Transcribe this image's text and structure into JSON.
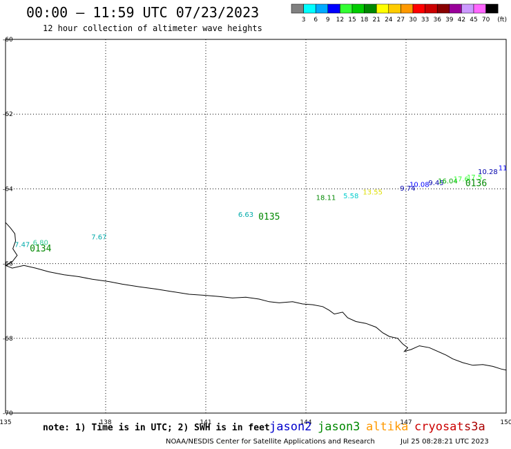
{
  "header": {
    "title": "00:00 – 11:59 UTC 07/23/2023",
    "subtitle": "12 hour collection of altimeter wave heights"
  },
  "legend": {
    "colors": [
      "#808080",
      "#00ffff",
      "#00aaff",
      "#0000ff",
      "#33ff33",
      "#00cc00",
      "#008800",
      "#ffff00",
      "#ffcc00",
      "#ff9900",
      "#ff0000",
      "#cc0000",
      "#880000",
      "#990099",
      "#cc99ff",
      "#ff66ff",
      "#000000"
    ],
    "labels": [
      "3",
      "6",
      "9",
      "12",
      "15",
      "18",
      "21",
      "24",
      "27",
      "30",
      "33",
      "36",
      "39",
      "42",
      "45",
      "70"
    ],
    "unit": "(ft)"
  },
  "axes": {
    "x_ticks": [
      135,
      138,
      141,
      144,
      147,
      150
    ],
    "y_ticks": [
      -60,
      -62,
      -64,
      -66,
      -68,
      -70
    ],
    "x_tick_labels": [
      "135",
      "138",
      "141",
      "144",
      "147",
      "150"
    ],
    "y_tick_labels": [
      "-60",
      "-62",
      "-64",
      "-66",
      "-68",
      "-70"
    ]
  },
  "observations": [
    {
      "text": "7.47",
      "lon": 135.5,
      "lat": -65.55,
      "color": "#00aaaa"
    },
    {
      "text": "6.80",
      "lon": 136.05,
      "lat": -65.5,
      "color": "#33cc99"
    },
    {
      "text": "7.67",
      "lon": 137.8,
      "lat": -65.35,
      "color": "#00aaaa"
    },
    {
      "text": "6.63",
      "lon": 142.2,
      "lat": -64.75,
      "color": "#00aaaa"
    },
    {
      "text": "18.11",
      "lon": 144.6,
      "lat": -64.3,
      "color": "#008800"
    },
    {
      "text": "5.58",
      "lon": 145.35,
      "lat": -64.25,
      "color": "#00cccc"
    },
    {
      "text": "13.55",
      "lon": 146.0,
      "lat": -64.15,
      "color": "#dddd00"
    },
    {
      "text": "9.74",
      "lon": 147.05,
      "lat": -64.05,
      "color": "#0000aa"
    },
    {
      "text": "10.08",
      "lon": 147.4,
      "lat": -63.95,
      "color": "#0000ff"
    },
    {
      "text": "9.45",
      "lon": 147.9,
      "lat": -63.9,
      "color": "#0000aa"
    },
    {
      "text": "16.04",
      "lon": 148.25,
      "lat": -63.85,
      "color": "#00aa00"
    },
    {
      "text": "17.6",
      "lon": 148.65,
      "lat": -63.8,
      "color": "#33ff33"
    },
    {
      "text": "17.5",
      "lon": 149.05,
      "lat": -63.75,
      "color": "#33ff33"
    },
    {
      "text": "10.28",
      "lon": 149.45,
      "lat": -63.6,
      "color": "#0000aa"
    },
    {
      "text": "11",
      "lon": 149.9,
      "lat": -63.5,
      "color": "#0000ff"
    }
  ],
  "time_labels": [
    {
      "text": "0134",
      "lon": 136.05,
      "lat": -65.6,
      "color": "#008800"
    },
    {
      "text": "0135",
      "lon": 142.9,
      "lat": -64.75,
      "color": "#008800"
    },
    {
      "text": "0136",
      "lon": 149.1,
      "lat": -63.85,
      "color": "#008800"
    }
  ],
  "footer": {
    "note": "note: 1) Time is in UTC; 2) SWH is in feet",
    "satellites": [
      {
        "name": "jason2",
        "color": "#0000cc"
      },
      {
        "name": "jason3",
        "color": "#008800"
      },
      {
        "name": "altika",
        "color": "#ff9900"
      },
      {
        "name": "cryosat",
        "color": "#cc0000"
      },
      {
        "name": "s3a",
        "color": "#aa0000"
      }
    ],
    "org": "NOAA/NESDIS Center for Satellite Applications and Research",
    "timestamp": "Jul 25 08:28:21 UTC 2023"
  },
  "coastline": [
    [
      135.0,
      -64.9
    ],
    [
      135.15,
      -65.05
    ],
    [
      135.28,
      -65.2
    ],
    [
      135.3,
      -65.4
    ],
    [
      135.22,
      -65.6
    ],
    [
      135.35,
      -65.78
    ],
    [
      135.2,
      -65.95
    ],
    [
      135.0,
      -66.05
    ],
    [
      135.2,
      -66.12
    ],
    [
      135.55,
      -66.05
    ],
    [
      135.9,
      -66.12
    ],
    [
      136.3,
      -66.22
    ],
    [
      136.75,
      -66.3
    ],
    [
      137.2,
      -66.35
    ],
    [
      137.6,
      -66.42
    ],
    [
      138.1,
      -66.48
    ],
    [
      138.5,
      -66.55
    ],
    [
      139.0,
      -66.62
    ],
    [
      139.5,
      -66.68
    ],
    [
      140.0,
      -66.75
    ],
    [
      140.5,
      -66.82
    ],
    [
      141.0,
      -66.85
    ],
    [
      141.4,
      -66.88
    ],
    [
      141.8,
      -66.92
    ],
    [
      142.2,
      -66.9
    ],
    [
      142.6,
      -66.95
    ],
    [
      142.9,
      -67.02
    ],
    [
      143.2,
      -67.05
    ],
    [
      143.6,
      -67.02
    ],
    [
      143.9,
      -67.08
    ],
    [
      144.2,
      -67.1
    ],
    [
      144.5,
      -67.15
    ],
    [
      144.7,
      -67.25
    ],
    [
      144.85,
      -67.35
    ],
    [
      145.1,
      -67.3
    ],
    [
      145.25,
      -67.45
    ],
    [
      145.5,
      -67.55
    ],
    [
      145.8,
      -67.6
    ],
    [
      146.1,
      -67.7
    ],
    [
      146.3,
      -67.85
    ],
    [
      146.5,
      -67.95
    ],
    [
      146.75,
      -68.0
    ],
    [
      146.9,
      -68.15
    ],
    [
      147.05,
      -68.25
    ],
    [
      146.95,
      -68.35
    ],
    [
      147.15,
      -68.3
    ],
    [
      147.4,
      -68.2
    ],
    [
      147.7,
      -68.25
    ],
    [
      147.95,
      -68.35
    ],
    [
      148.2,
      -68.45
    ],
    [
      148.4,
      -68.55
    ],
    [
      148.7,
      -68.65
    ],
    [
      149.0,
      -68.72
    ],
    [
      149.3,
      -68.7
    ],
    [
      149.6,
      -68.75
    ],
    [
      149.85,
      -68.82
    ],
    [
      150.0,
      -68.85
    ]
  ]
}
